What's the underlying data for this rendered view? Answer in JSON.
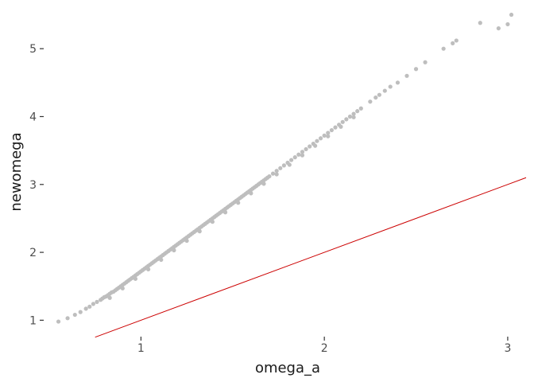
{
  "chart_data": {
    "type": "scatter",
    "title": "",
    "xlabel": "omega_a",
    "ylabel": "newomega",
    "xlim": [
      0.5,
      3.1
    ],
    "ylim": [
      0.77,
      5.6
    ],
    "x_ticks": [
      1,
      2,
      3
    ],
    "y_ticks": [
      1,
      2,
      3,
      4,
      5
    ],
    "grid": false,
    "legend": "none",
    "point_color": "#bebebe",
    "points": {
      "x": [
        0.55,
        0.6,
        0.64,
        0.67,
        0.7,
        0.72,
        0.74,
        0.76,
        0.78,
        0.79,
        0.8,
        0.81,
        0.82,
        0.83,
        0.84,
        0.85,
        0.86,
        0.87,
        0.88,
        0.89,
        0.9,
        0.91,
        0.92,
        0.93,
        0.94,
        0.95,
        0.96,
        0.97,
        0.98,
        0.99,
        1.0,
        1.01,
        1.02,
        1.03,
        1.04,
        1.05,
        1.06,
        1.07,
        1.08,
        1.09,
        1.1,
        1.11,
        1.12,
        1.13,
        1.14,
        1.15,
        1.16,
        1.17,
        1.18,
        1.19,
        1.2,
        1.21,
        1.22,
        1.23,
        1.24,
        1.25,
        1.26,
        1.27,
        1.28,
        1.29,
        1.3,
        1.31,
        1.32,
        1.33,
        1.34,
        1.35,
        1.36,
        1.37,
        1.38,
        1.39,
        1.4,
        1.41,
        1.42,
        1.43,
        1.44,
        1.45,
        1.46,
        1.47,
        1.48,
        1.49,
        1.5,
        1.51,
        1.52,
        1.53,
        1.54,
        1.55,
        1.56,
        1.57,
        1.58,
        1.59,
        1.6,
        1.61,
        1.62,
        1.63,
        1.64,
        1.65,
        1.66,
        1.67,
        1.68,
        1.69,
        1.7,
        1.72,
        1.74,
        1.76,
        1.78,
        1.8,
        1.82,
        1.84,
        1.86,
        1.88,
        1.9,
        1.92,
        1.94,
        1.96,
        1.98,
        2.0,
        2.02,
        2.04,
        2.06,
        2.08,
        2.1,
        2.12,
        2.14,
        2.16,
        2.18,
        2.2,
        2.25,
        2.28,
        2.3,
        2.33,
        2.36,
        2.4,
        2.45,
        2.5,
        2.55,
        2.65,
        2.7,
        2.72,
        2.85,
        2.95,
        3.0,
        3.02,
        0.83,
        0.9,
        0.97,
        1.04,
        1.11,
        1.18,
        1.25,
        1.32,
        1.39,
        1.46,
        1.53,
        1.6,
        1.67,
        1.74,
        1.81,
        1.88,
        1.95,
        2.02,
        2.09,
        2.16
      ],
      "y": [
        0.98,
        1.03,
        1.08,
        1.12,
        1.17,
        1.2,
        1.24,
        1.27,
        1.3,
        1.32,
        1.34,
        1.35,
        1.37,
        1.39,
        1.41,
        1.42,
        1.44,
        1.46,
        1.48,
        1.5,
        1.52,
        1.54,
        1.56,
        1.58,
        1.6,
        1.62,
        1.64,
        1.66,
        1.68,
        1.7,
        1.72,
        1.74,
        1.76,
        1.78,
        1.8,
        1.82,
        1.84,
        1.86,
        1.88,
        1.9,
        1.92,
        1.94,
        1.96,
        1.98,
        2.0,
        2.02,
        2.04,
        2.06,
        2.08,
        2.1,
        2.12,
        2.14,
        2.16,
        2.18,
        2.2,
        2.22,
        2.24,
        2.26,
        2.28,
        2.3,
        2.32,
        2.34,
        2.36,
        2.38,
        2.4,
        2.42,
        2.44,
        2.46,
        2.48,
        2.5,
        2.52,
        2.54,
        2.56,
        2.58,
        2.6,
        2.62,
        2.64,
        2.66,
        2.68,
        2.7,
        2.72,
        2.74,
        2.76,
        2.78,
        2.8,
        2.82,
        2.84,
        2.86,
        2.88,
        2.9,
        2.92,
        2.94,
        2.96,
        2.98,
        3.0,
        3.02,
        3.04,
        3.06,
        3.08,
        3.1,
        3.12,
        3.16,
        3.2,
        3.24,
        3.28,
        3.32,
        3.36,
        3.4,
        3.44,
        3.48,
        3.52,
        3.56,
        3.6,
        3.64,
        3.68,
        3.72,
        3.76,
        3.8,
        3.84,
        3.88,
        3.92,
        3.96,
        4.0,
        4.04,
        4.08,
        4.12,
        4.22,
        4.28,
        4.32,
        4.38,
        4.44,
        4.5,
        4.6,
        4.7,
        4.8,
        5.0,
        5.08,
        5.12,
        5.38,
        5.3,
        5.36,
        5.5,
        1.33,
        1.47,
        1.61,
        1.75,
        1.89,
        2.03,
        2.17,
        2.31,
        2.45,
        2.59,
        2.73,
        2.87,
        3.01,
        3.15,
        3.29,
        3.43,
        3.57,
        3.71,
        3.85,
        3.99
      ]
    },
    "reference_line": {
      "label": "",
      "color": "#cc0000",
      "x": [
        0.75,
        3.15
      ],
      "y": [
        0.75,
        3.15
      ]
    }
  }
}
